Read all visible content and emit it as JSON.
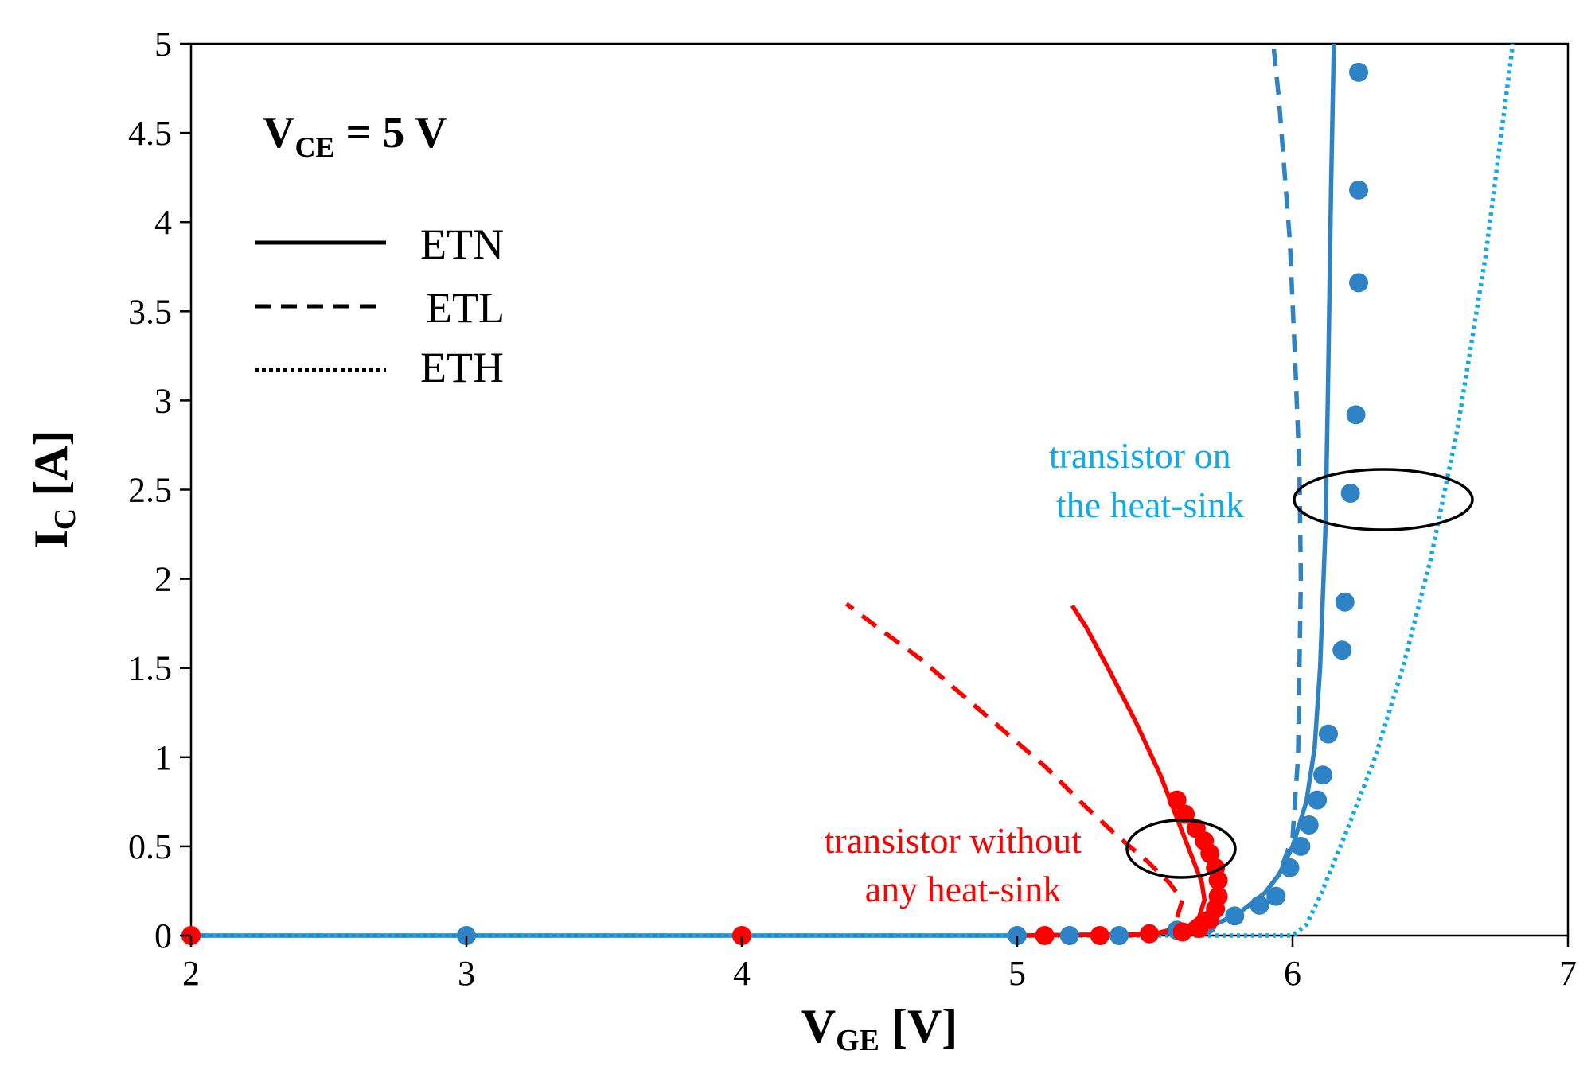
{
  "chart_data": {
    "type": "scatter",
    "xlabel": {
      "main": "V",
      "sub": "GE",
      "unit": " [V]"
    },
    "ylabel": {
      "main": "I",
      "sub": "C",
      "unit": " [A]"
    },
    "xlim": [
      2,
      7
    ],
    "ylim": [
      0,
      5
    ],
    "x_ticks": [
      "2",
      "3",
      "4",
      "5",
      "6",
      "7"
    ],
    "y_ticks": [
      "0",
      "0.5",
      "1",
      "1.5",
      "2",
      "2.5",
      "3",
      "3.5",
      "4",
      "4.5",
      "5"
    ],
    "grid": false,
    "condition": {
      "main": "V",
      "sub": "CE",
      "rest": " = 5 V"
    },
    "legend": {
      "placement": "top-left",
      "entries": [
        {
          "label": "ETN",
          "style": "solid"
        },
        {
          "label": "ETL",
          "style": "dashed"
        },
        {
          "label": "ETH",
          "style": "dotted"
        }
      ]
    },
    "colors": {
      "red": "#ff0000",
      "blue": "#2e82c6",
      "lightblue": "#12a9e8"
    },
    "series": [
      {
        "kind": "line",
        "style": "solid",
        "color": "#2e82c6",
        "x": [
          2,
          4,
          5,
          5.5,
          5.7,
          5.8,
          5.9,
          5.95,
          6.0,
          6.05,
          6.08,
          6.1,
          6.12,
          6.13,
          6.14,
          6.15
        ],
        "y": [
          0,
          0,
          0,
          0.01,
          0.05,
          0.12,
          0.24,
          0.34,
          0.5,
          0.75,
          1.05,
          1.5,
          2.3,
          3.2,
          4.2,
          5.0
        ]
      },
      {
        "kind": "line",
        "style": "dashed",
        "color": "#2e82c6",
        "x": [
          2,
          4,
          5,
          5.5,
          5.7,
          5.8,
          5.9,
          5.95,
          6.0,
          6.02,
          6.03,
          6.025,
          6.01,
          5.99,
          5.97,
          5.95,
          5.93
        ],
        "y": [
          0,
          0,
          0,
          0.01,
          0.05,
          0.12,
          0.24,
          0.34,
          0.55,
          1.0,
          2.0,
          2.6,
          3.2,
          3.9,
          4.3,
          4.7,
          5.0
        ]
      },
      {
        "kind": "line",
        "style": "dotted",
        "color": "#12a9e8",
        "x": [
          2,
          5,
          6.0,
          6.05,
          6.1,
          6.2,
          6.3,
          6.4,
          6.5,
          6.6,
          6.7,
          6.8
        ],
        "y": [
          0,
          0,
          0,
          0.06,
          0.22,
          0.6,
          1.0,
          1.5,
          2.1,
          2.85,
          3.8,
          5.0
        ]
      },
      {
        "kind": "markers",
        "color": "#2e82c6",
        "x": [
          2,
          3,
          4,
          5,
          5.19,
          5.37,
          5.58,
          5.69,
          5.79,
          5.88,
          5.94,
          5.99,
          6.03,
          6.06,
          6.09,
          6.11,
          6.13,
          6.18,
          6.19,
          6.21,
          6.23,
          6.24,
          6.24,
          6.24
        ],
        "y": [
          0,
          0,
          0,
          0,
          0,
          0,
          0.03,
          0.06,
          0.11,
          0.17,
          0.22,
          0.38,
          0.5,
          0.62,
          0.76,
          0.9,
          1.13,
          1.6,
          1.87,
          2.48,
          2.92,
          3.66,
          4.18,
          4.84
        ]
      },
      {
        "kind": "line",
        "style": "solid",
        "color": "#ff0000",
        "x": [
          5.0,
          5.4,
          5.55,
          5.62,
          5.66,
          5.68,
          5.67,
          5.62,
          5.57,
          5.52,
          5.43,
          5.33,
          5.25,
          5.2
        ],
        "y": [
          0,
          0.005,
          0.02,
          0.05,
          0.1,
          0.2,
          0.3,
          0.5,
          0.7,
          0.9,
          1.2,
          1.5,
          1.73,
          1.85
        ]
      },
      {
        "kind": "line",
        "style": "dashed",
        "color": "#ff0000",
        "x": [
          5.4,
          5.5,
          5.55,
          5.58,
          5.6,
          5.55,
          5.47,
          5.37,
          5.25,
          5.1,
          4.95,
          4.8,
          4.65,
          4.5,
          4.38
        ],
        "y": [
          0,
          0.01,
          0.03,
          0.1,
          0.2,
          0.3,
          0.42,
          0.55,
          0.72,
          0.95,
          1.15,
          1.35,
          1.55,
          1.72,
          1.86
        ]
      },
      {
        "kind": "markers",
        "color": "#ff0000",
        "x": [
          2,
          4,
          5.1,
          5.3,
          5.48,
          5.6,
          5.66,
          5.7,
          5.72,
          5.73,
          5.73,
          5.72,
          5.7,
          5.68,
          5.65,
          5.61,
          5.58
        ],
        "y": [
          0,
          0,
          0,
          0,
          0.01,
          0.02,
          0.04,
          0.09,
          0.15,
          0.22,
          0.31,
          0.38,
          0.46,
          0.53,
          0.6,
          0.68,
          0.76
        ]
      }
    ],
    "annotations": [
      {
        "lines": [
          "transistor on",
          "the heat-sink"
        ],
        "color": "#12a9e8"
      },
      {
        "lines": [
          "transistor without",
          "any heat-sink"
        ],
        "color": "#ff0000"
      }
    ]
  }
}
